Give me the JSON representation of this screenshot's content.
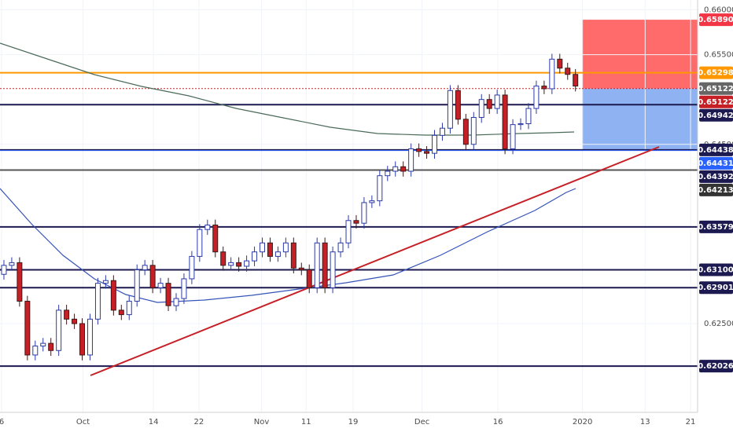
{
  "chart_data": {
    "type": "candlestick",
    "ylim": [
      0.6151,
      0.6611
    ],
    "xlim": [
      -0.5,
      88.6
    ],
    "yticks": [
      {
        "value": 0.66,
        "label": "0.66000"
      },
      {
        "value": 0.655,
        "label": "0.65500"
      },
      {
        "value": 0.645,
        "label": "0.64500"
      },
      {
        "value": 0.625,
        "label": "0.62500"
      }
    ],
    "xticks": [
      {
        "value": -0.3,
        "label": "6"
      },
      {
        "value": 10.1,
        "label": "Oct"
      },
      {
        "value": 19.1,
        "label": "14"
      },
      {
        "value": 24.9,
        "label": "22"
      },
      {
        "value": 32.9,
        "label": "Nov"
      },
      {
        "value": 38.6,
        "label": "11"
      },
      {
        "value": 44.6,
        "label": "19"
      },
      {
        "value": 53.4,
        "label": "Dec"
      },
      {
        "value": 63.1,
        "label": "16"
      },
      {
        "value": 73.9,
        "label": "2020"
      },
      {
        "value": 81.9,
        "label": "13"
      },
      {
        "value": 87.7,
        "label": "21"
      }
    ],
    "up_color": "#ffffff",
    "up_outline": "#2b3aa8",
    "down_color": "#c62026",
    "open": [
      0.6305,
      0.6315,
      0.6318,
      0.6275,
      0.6215,
      0.6225,
      0.6228,
      0.622,
      0.6265,
      0.6255,
      0.625,
      0.6215,
      0.6255,
      0.6295,
      0.6298,
      0.6265,
      0.626,
      0.6275,
      0.631,
      0.6315,
      0.629,
      0.6295,
      0.627,
      0.6278,
      0.63,
      0.6325,
      0.6355,
      0.636,
      0.633,
      0.6315,
      0.6318,
      0.6314,
      0.632,
      0.633,
      0.634,
      0.6325,
      0.633,
      0.634,
      0.6312,
      0.631,
      0.629,
      0.634,
      0.629,
      0.633,
      0.634,
      0.6365,
      0.6362,
      0.6385,
      0.6387,
      0.6415,
      0.642,
      0.6425,
      0.642,
      0.6445,
      0.6442,
      0.644,
      0.646,
      0.6468,
      0.651,
      0.6478,
      0.645,
      0.648,
      0.65,
      0.649,
      0.6505,
      0.6445,
      0.6472,
      0.6473,
      0.649,
      0.6515,
      0.6512,
      0.6545,
      0.6535,
      0.6528
    ],
    "high": [
      0.6321,
      0.6324,
      0.6324,
      0.6281,
      0.6231,
      0.6234,
      0.6234,
      0.6271,
      0.6271,
      0.6261,
      0.6256,
      0.6261,
      0.6301,
      0.6304,
      0.6304,
      0.6271,
      0.6281,
      0.6316,
      0.6321,
      0.6321,
      0.6301,
      0.6301,
      0.6284,
      0.6306,
      0.6331,
      0.6361,
      0.6366,
      0.6366,
      0.6336,
      0.6324,
      0.6324,
      0.6326,
      0.6336,
      0.6346,
      0.6346,
      0.6336,
      0.6346,
      0.6346,
      0.6318,
      0.6316,
      0.6346,
      0.6346,
      0.6336,
      0.6346,
      0.6371,
      0.6371,
      0.6391,
      0.6393,
      0.6421,
      0.6426,
      0.6431,
      0.6431,
      0.6451,
      0.6451,
      0.6448,
      0.6466,
      0.6474,
      0.6516,
      0.6516,
      0.6484,
      0.6486,
      0.6506,
      0.6506,
      0.6511,
      0.6511,
      0.6478,
      0.6479,
      0.6496,
      0.6521,
      0.6521,
      0.6551,
      0.6551,
      0.6541,
      0.6534
    ],
    "low": [
      0.6299,
      0.6309,
      0.6269,
      0.6209,
      0.6209,
      0.6219,
      0.6214,
      0.6214,
      0.6249,
      0.6244,
      0.6209,
      0.6209,
      0.6249,
      0.6289,
      0.6259,
      0.6254,
      0.6254,
      0.6269,
      0.6304,
      0.6284,
      0.6284,
      0.6264,
      0.6264,
      0.6272,
      0.6294,
      0.6319,
      0.6349,
      0.6324,
      0.6309,
      0.6309,
      0.6308,
      0.6308,
      0.6314,
      0.6324,
      0.6319,
      0.6319,
      0.6324,
      0.6306,
      0.6304,
      0.6284,
      0.6284,
      0.6284,
      0.6284,
      0.6324,
      0.6334,
      0.6356,
      0.6356,
      0.6379,
      0.6381,
      0.6409,
      0.6414,
      0.6414,
      0.6414,
      0.6436,
      0.6434,
      0.6434,
      0.6454,
      0.6462,
      0.6472,
      0.6444,
      0.6444,
      0.6474,
      0.6484,
      0.6484,
      0.6439,
      0.6439,
      0.6466,
      0.6467,
      0.6484,
      0.6506,
      0.6506,
      0.6529,
      0.6522,
      0.6509
    ],
    "close": [
      0.6315,
      0.6318,
      0.6275,
      0.6215,
      0.6225,
      0.6228,
      0.622,
      0.6265,
      0.6255,
      0.625,
      0.6215,
      0.6255,
      0.6295,
      0.6298,
      0.6265,
      0.626,
      0.6275,
      0.631,
      0.6315,
      0.629,
      0.6295,
      0.627,
      0.6278,
      0.63,
      0.6325,
      0.6355,
      0.636,
      0.633,
      0.6315,
      0.6318,
      0.6314,
      0.632,
      0.633,
      0.634,
      0.6325,
      0.633,
      0.634,
      0.6312,
      0.631,
      0.629,
      0.634,
      0.629,
      0.633,
      0.634,
      0.6365,
      0.6362,
      0.6385,
      0.6387,
      0.6415,
      0.642,
      0.6425,
      0.642,
      0.6445,
      0.6442,
      0.644,
      0.646,
      0.6468,
      0.651,
      0.6478,
      0.645,
      0.648,
      0.65,
      0.649,
      0.6505,
      0.6445,
      0.6472,
      0.6473,
      0.649,
      0.6515,
      0.6512,
      0.6545,
      0.6535,
      0.6528,
      0.6515
    ],
    "levels": [
      {
        "value": 0.65298,
        "color": "#ff9800",
        "width": 2
      },
      {
        "value": 0.65122,
        "color": "#c62026",
        "width": 1,
        "dashed": true
      },
      {
        "value": 0.64942,
        "color": "#1c1a50",
        "width": 2
      },
      {
        "value": 0.64438,
        "color": "#1c1a50",
        "width": 2
      },
      {
        "value": 0.64431,
        "color": "#2962ff",
        "width": 1
      },
      {
        "value": 0.64213,
        "color": "#555555",
        "width": 2
      },
      {
        "value": 0.63579,
        "color": "#1c1a50",
        "width": 2
      },
      {
        "value": 0.631,
        "color": "#1c1a50",
        "width": 2
      },
      {
        "value": 0.62901,
        "color": "#1c1a50",
        "width": 2
      },
      {
        "value": 0.62026,
        "color": "#1c1a50",
        "width": 2
      }
    ],
    "zones": [
      {
        "from": 0.6589,
        "to": 0.65122,
        "color": "#ff6b6b"
      },
      {
        "from": 0.65122,
        "to": 0.64438,
        "color": "#8fb3f2"
      }
    ],
    "price_labels": [
      {
        "value": 0.6589,
        "label": "0.65890",
        "color": "#f23645"
      },
      {
        "value": 0.65298,
        "label": "0.65298",
        "color": "#ff9800"
      },
      {
        "value": 0.65122,
        "label": "0.65122",
        "color": "#666666"
      },
      {
        "value": 0.65122,
        "label": "0.65122",
        "color": "#c62026"
      },
      {
        "value": 0.64942,
        "label": "0.64942",
        "color": "#1c1a50"
      },
      {
        "value": 0.64438,
        "label": "0.64438",
        "color": "#1c1a50"
      },
      {
        "value": 0.64431,
        "label": "0.64431",
        "color": "#2962ff"
      },
      {
        "value": 0.64392,
        "label": "0.64392",
        "color": "#1c1a50"
      },
      {
        "value": 0.64213,
        "label": "0.64213",
        "color": "#333333"
      },
      {
        "value": 0.63579,
        "label": "0.63579",
        "color": "#1c1a50"
      },
      {
        "value": 0.631,
        "label": "0.63100",
        "color": "#1c1a50"
      },
      {
        "value": 0.62901,
        "label": "0.62901",
        "color": "#1c1a50"
      },
      {
        "value": 0.62026,
        "label": "0.62026",
        "color": "#1c1a50"
      }
    ]
  }
}
